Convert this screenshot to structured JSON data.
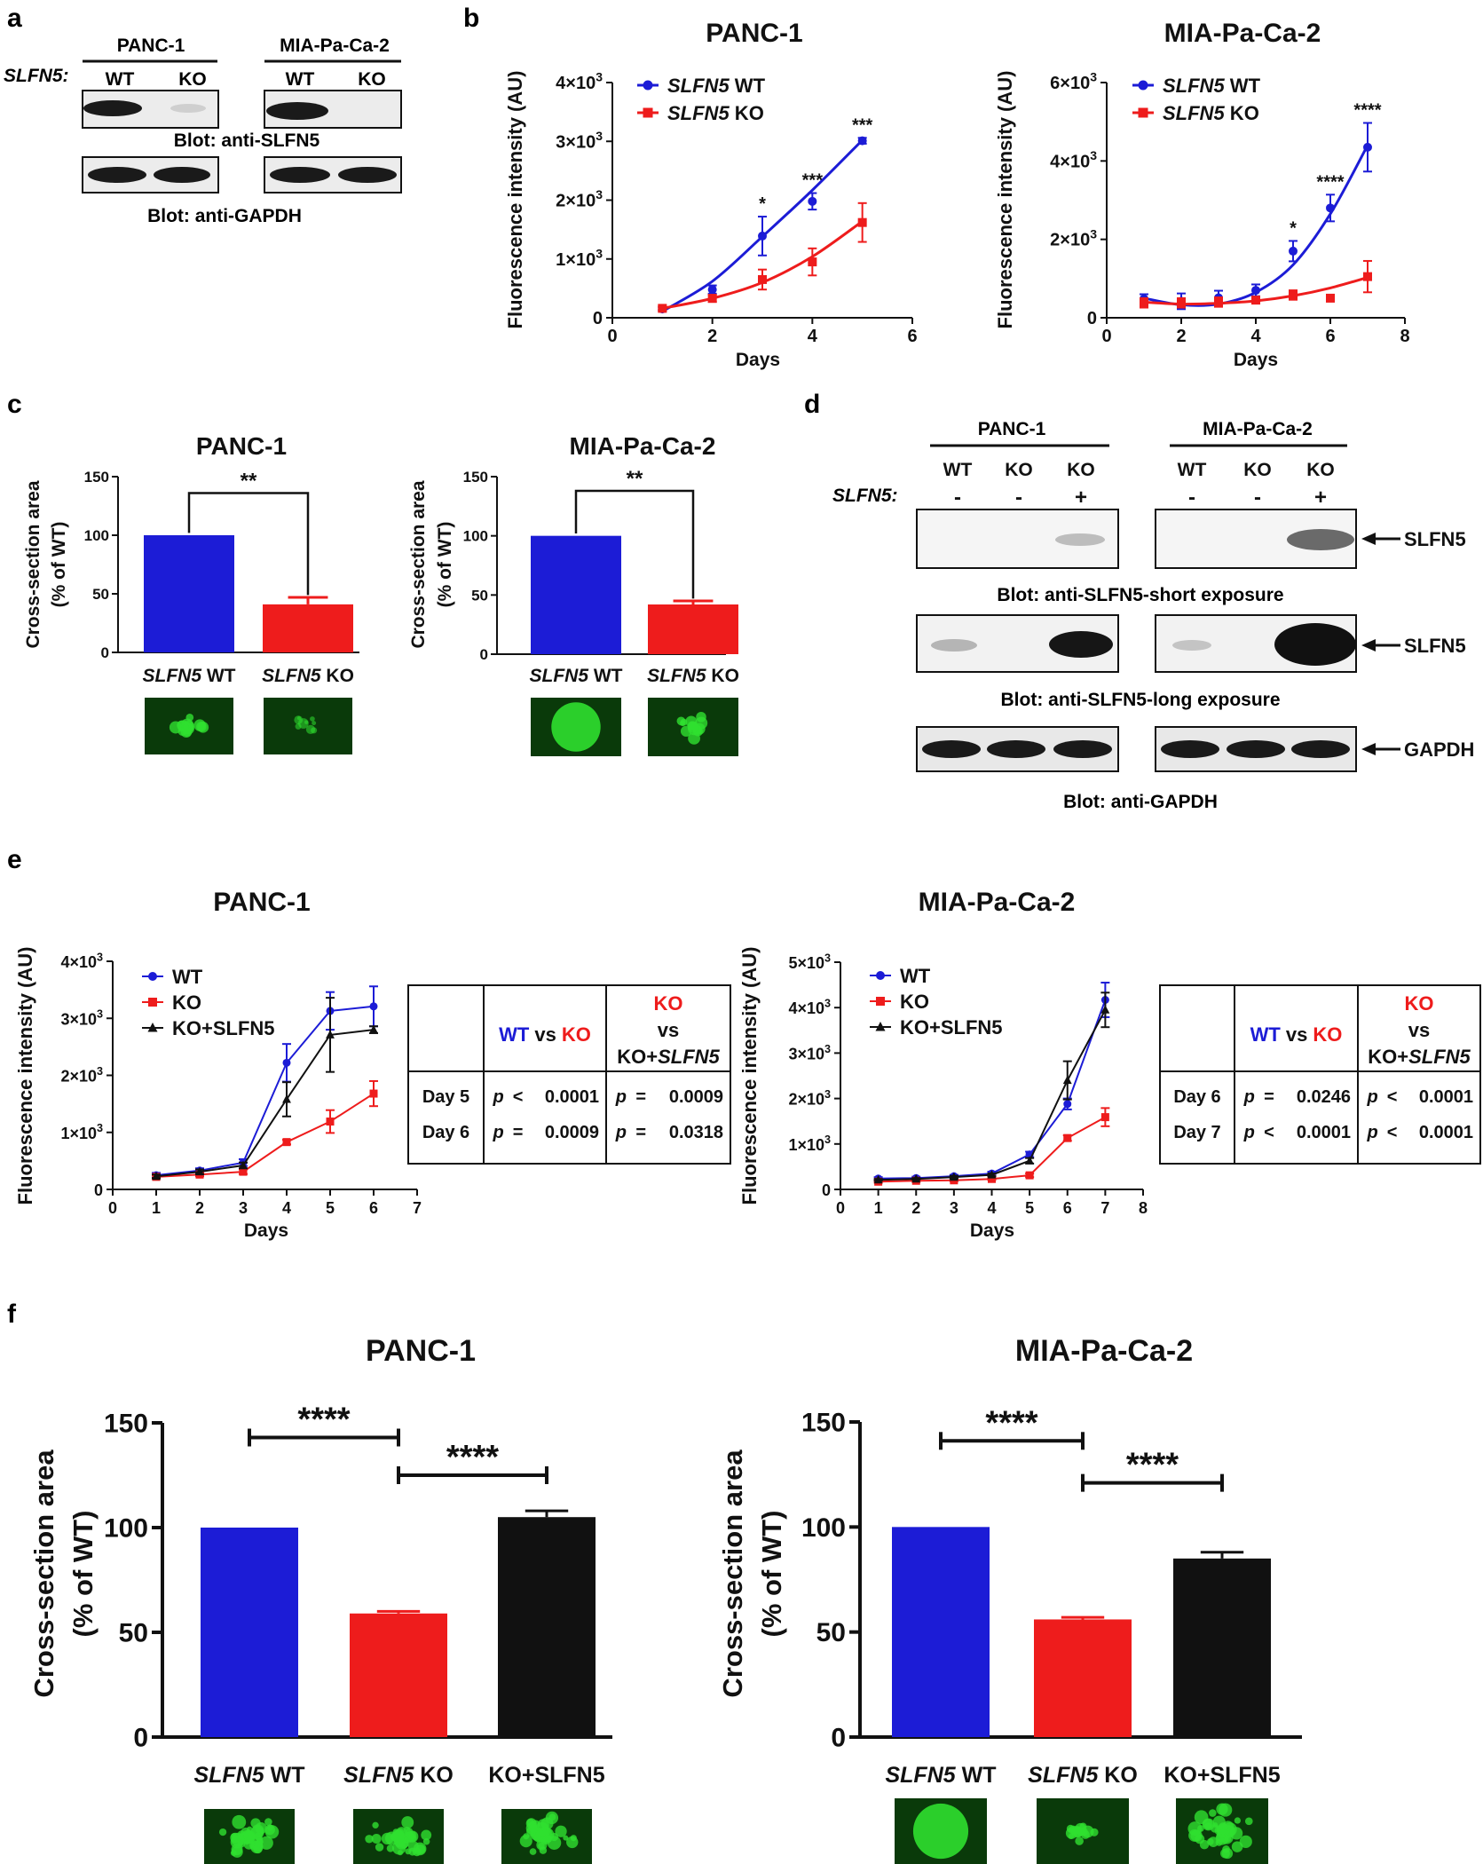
{
  "colors": {
    "wt": "#1c1cd6",
    "ko": "#ee1c1c",
    "rescue": "#111111",
    "axis": "#111111",
    "blot_bg": "#ededed",
    "band": "#1a1a1a",
    "glow": "#2fe02f"
  },
  "panel_labels": {
    "a": "a",
    "b": "b",
    "c": "c",
    "d": "d",
    "e": "e",
    "f": "f"
  },
  "panel_a": {
    "cells": [
      "PANC-1",
      "MIA-Pa-Ca-2"
    ],
    "row_label": "SLFN5:",
    "lanes": [
      "WT",
      "KO",
      "WT",
      "KO"
    ],
    "blot1": "Blot: anti-SLFN5",
    "blot2": "Blot: anti-GAPDH"
  },
  "panel_d": {
    "cells": [
      "PANC-1",
      "MIA-Pa-Ca-2"
    ],
    "lanes": [
      "WT",
      "KO",
      "KO",
      "WT",
      "KO",
      "KO"
    ],
    "row_label": "SLFN5:",
    "signs": [
      "-",
      "-",
      "+",
      "-",
      "-",
      "+"
    ],
    "blot_short": "Blot: anti-SLFN5-short exposure",
    "blot_long": "Blot: anti-SLFN5-long exposure",
    "blot_gapdh": "Blot: anti-GAPDH",
    "arrow_labels": [
      "SLFN5",
      "SLFN5",
      "GAPDH"
    ]
  },
  "table_e": [
    {
      "header": {
        "c1a": "WT",
        "c1b": "vs",
        "c1c": "KO",
        "c2a": "KO",
        "c2b": "vs",
        "c2c": "KO+",
        "c2d": "SLFN5"
      },
      "rows": [
        {
          "day": "Day 5",
          "p1": "p",
          "op1": "<",
          "v1": "0.0001",
          "p2": "p",
          "op2": "=",
          "v2": "0.0009"
        },
        {
          "day": "Day 6",
          "p1": "p",
          "op1": "=",
          "v1": "0.0009",
          "p2": "p",
          "op2": "=",
          "v2": "0.0318"
        }
      ]
    },
    {
      "header": {
        "c1a": "WT",
        "c1b": "vs",
        "c1c": "KO",
        "c2a": "KO",
        "c2b": "vs",
        "c2c": "KO+",
        "c2d": "SLFN5"
      },
      "rows": [
        {
          "day": "Day 6",
          "p1": "p",
          "op1": "=",
          "v1": "0.0246",
          "p2": "p",
          "op2": "<",
          "v2": "0.0001"
        },
        {
          "day": "Day 7",
          "p1": "p",
          "op1": "<",
          "v1": "0.0001",
          "p2": "p",
          "op2": "<",
          "v2": "0.0001"
        }
      ]
    }
  ],
  "chart_data": [
    {
      "id": "b1",
      "type": "line",
      "title": "PANC-1",
      "xlabel": "Days",
      "ylabel": "Fluorescence intensity (AU)",
      "xlim": [
        0,
        6
      ],
      "ylim": [
        0,
        4000
      ],
      "xticks": [
        0,
        2,
        4,
        6
      ],
      "yticks": [
        {
          "v": 0,
          "label": "0"
        },
        {
          "v": 1000,
          "label": "1×10",
          "exp": "3"
        },
        {
          "v": 2000,
          "label": "2×10",
          "exp": "3"
        },
        {
          "v": 3000,
          "label": "3×10",
          "exp": "3"
        },
        {
          "v": 4000,
          "label": "4×10",
          "exp": "3"
        }
      ],
      "fit": "curve",
      "series": [
        {
          "name": "SLFN5 WT",
          "gene": "SLFN5",
          "suffix": " WT",
          "colorKey": "wt",
          "marker": "circle",
          "x": [
            1,
            2,
            3,
            4,
            5
          ],
          "y": [
            150,
            480,
            1390,
            1980,
            3010
          ],
          "err": [
            30,
            70,
            330,
            140,
            50
          ],
          "fit": [
            [
              1,
              110
            ],
            [
              2,
              620
            ],
            [
              3,
              1380
            ],
            [
              4,
              2170
            ],
            [
              5,
              3020
            ]
          ]
        },
        {
          "name": "SLFN5 KO",
          "gene": "SLFN5",
          "suffix": " KO",
          "colorKey": "ko",
          "marker": "square",
          "x": [
            1,
            2,
            3,
            4,
            5
          ],
          "y": [
            160,
            330,
            650,
            950,
            1620
          ],
          "err": [
            30,
            60,
            170,
            230,
            330
          ],
          "fit": [
            [
              1,
              160
            ],
            [
              2,
              330
            ],
            [
              3,
              600
            ],
            [
              4,
              1040
            ],
            [
              5,
              1640
            ]
          ]
        }
      ],
      "sig": [
        {
          "x": 3,
          "text": "*"
        },
        {
          "x": 4,
          "text": "***"
        },
        {
          "x": 5,
          "text": "***"
        }
      ]
    },
    {
      "id": "b2",
      "type": "line",
      "title": "MIA-Pa-Ca-2",
      "xlabel": "Days",
      "ylabel": "Fluorescence intensity (AU)",
      "xlim": [
        0,
        8
      ],
      "ylim": [
        0,
        6000
      ],
      "xticks": [
        0,
        2,
        4,
        6,
        8
      ],
      "yticks": [
        {
          "v": 0,
          "label": "0"
        },
        {
          "v": 2000,
          "label": "2×10",
          "exp": "3"
        },
        {
          "v": 4000,
          "label": "4×10",
          "exp": "3"
        },
        {
          "v": 6000,
          "label": "6×10",
          "exp": "3"
        }
      ],
      "fit": "curve",
      "series": [
        {
          "name": "SLFN5 WT",
          "gene": "SLFN5",
          "suffix": " WT",
          "colorKey": "wt",
          "marker": "circle",
          "x": [
            1,
            2,
            3,
            4,
            5,
            6,
            7
          ],
          "y": [
            480,
            420,
            510,
            700,
            1700,
            2800,
            4350
          ],
          "err": [
            120,
            200,
            180,
            150,
            260,
            340,
            620
          ],
          "fit": [
            [
              1,
              500
            ],
            [
              2,
              330
            ],
            [
              3,
              350
            ],
            [
              4,
              650
            ],
            [
              5,
              1350
            ],
            [
              6,
              2650
            ],
            [
              7,
              4400
            ]
          ]
        },
        {
          "name": "SLFN5 KO",
          "gene": "SLFN5",
          "suffix": " KO",
          "colorKey": "ko",
          "marker": "square",
          "x": [
            1,
            2,
            3,
            4,
            5,
            6,
            7
          ],
          "y": [
            380,
            380,
            400,
            450,
            580,
            500,
            1050
          ],
          "err": [
            120,
            120,
            120,
            80,
            120,
            50,
            400
          ],
          "fit": [
            [
              1,
              400
            ],
            [
              2,
              350
            ],
            [
              3,
              370
            ],
            [
              4,
              430
            ],
            [
              5,
              560
            ],
            [
              6,
              760
            ],
            [
              7,
              1030
            ]
          ]
        }
      ],
      "sig": [
        {
          "x": 5,
          "text": "*"
        },
        {
          "x": 6,
          "text": "****"
        },
        {
          "x": 7,
          "text": "****"
        }
      ]
    },
    {
      "id": "c1",
      "type": "bar",
      "title": "PANC-1",
      "ylabel": "Cross-section area",
      "ylabel2": "(% of WT)",
      "ylim": [
        0,
        150
      ],
      "yticks": [
        0,
        50,
        100,
        150
      ],
      "categories": [
        {
          "gene": "SLFN5",
          "suffix": " WT"
        },
        {
          "gene": "SLFN5",
          "suffix": " KO"
        }
      ],
      "values": [
        100,
        41
      ],
      "err": [
        0,
        6
      ],
      "colorKeys": [
        "wt",
        "ko"
      ],
      "sig": [
        {
          "from": 0,
          "to": 1,
          "text": "**",
          "yv": 136
        }
      ],
      "thumbs": [
        "scattered",
        "faint"
      ]
    },
    {
      "id": "c2",
      "type": "bar",
      "title": "MIA-Pa-Ca-2",
      "ylabel": "Cross-section area",
      "ylabel2": "(% of WT)",
      "ylim": [
        0,
        150
      ],
      "yticks": [
        0,
        50,
        100,
        150
      ],
      "categories": [
        {
          "gene": "SLFN5",
          "suffix": " WT"
        },
        {
          "gene": "SLFN5",
          "suffix": " KO"
        }
      ],
      "values": [
        100,
        42
      ],
      "err": [
        0,
        3
      ],
      "colorKeys": [
        "wt",
        "ko"
      ],
      "sig": [
        {
          "from": 0,
          "to": 1,
          "text": "**",
          "yv": 138
        }
      ],
      "thumbs": [
        "sphere",
        "scattered"
      ]
    },
    {
      "id": "e1",
      "type": "line",
      "title": "PANC-1",
      "xlabel": "Days",
      "ylabel": "Fluorescence intensity (AU)",
      "xlim": [
        0,
        7
      ],
      "ylim": [
        0,
        4000
      ],
      "xticks": [
        0,
        1,
        2,
        3,
        4,
        5,
        6,
        7
      ],
      "yticks": [
        {
          "v": 0,
          "label": "0"
        },
        {
          "v": 1000,
          "label": "1×10",
          "exp": "3"
        },
        {
          "v": 2000,
          "label": "2×10",
          "exp": "3"
        },
        {
          "v": 3000,
          "label": "3×10",
          "exp": "3"
        },
        {
          "v": 4000,
          "label": "4×10",
          "exp": "3"
        }
      ],
      "fit": "connect",
      "series": [
        {
          "name": "WT",
          "colorKey": "wt",
          "marker": "circle",
          "x": [
            1,
            2,
            3,
            4,
            5,
            6
          ],
          "y": [
            250,
            330,
            470,
            2220,
            3130,
            3210
          ],
          "err": [
            40,
            40,
            60,
            330,
            330,
            350
          ]
        },
        {
          "name": "KO",
          "colorKey": "ko",
          "marker": "square",
          "x": [
            1,
            2,
            3,
            4,
            5,
            6
          ],
          "y": [
            220,
            260,
            310,
            830,
            1190,
            1680
          ],
          "err": [
            30,
            30,
            40,
            40,
            200,
            220
          ]
        },
        {
          "name": "KO+SLFN5",
          "colorKey": "rescue",
          "marker": "triangle",
          "x": [
            1,
            2,
            3,
            4,
            5,
            6
          ],
          "y": [
            230,
            310,
            420,
            1580,
            2710,
            2800
          ],
          "err": [
            30,
            40,
            50,
            300,
            650,
            60
          ]
        }
      ]
    },
    {
      "id": "e2",
      "type": "line",
      "title": "MIA-Pa-Ca-2",
      "xlabel": "Days",
      "ylabel": "Fluorescence intensity (AU)",
      "xlim": [
        0,
        8
      ],
      "ylim": [
        0,
        5000
      ],
      "xticks": [
        0,
        1,
        2,
        3,
        4,
        5,
        6,
        7,
        8
      ],
      "yticks": [
        {
          "v": 0,
          "label": "0"
        },
        {
          "v": 1000,
          "label": "1×10",
          "exp": "3"
        },
        {
          "v": 2000,
          "label": "2×10",
          "exp": "3"
        },
        {
          "v": 3000,
          "label": "3×10",
          "exp": "3"
        },
        {
          "v": 4000,
          "label": "4×10",
          "exp": "3"
        },
        {
          "v": 5000,
          "label": "5×10",
          "exp": "3"
        }
      ],
      "fit": "connect",
      "series": [
        {
          "name": "WT",
          "colorKey": "wt",
          "marker": "circle",
          "x": [
            1,
            2,
            3,
            4,
            5,
            6,
            7
          ],
          "y": [
            240,
            250,
            290,
            350,
            770,
            1880,
            4170
          ],
          "err": [
            30,
            30,
            30,
            40,
            60,
            120,
            380
          ]
        },
        {
          "name": "KO",
          "colorKey": "ko",
          "marker": "square",
          "x": [
            1,
            2,
            3,
            4,
            5,
            6,
            7
          ],
          "y": [
            170,
            190,
            200,
            230,
            310,
            1130,
            1590
          ],
          "err": [
            20,
            20,
            20,
            20,
            40,
            60,
            200
          ]
        },
        {
          "name": "KO+SLFN5",
          "colorKey": "rescue",
          "marker": "triangle",
          "x": [
            1,
            2,
            3,
            4,
            5,
            6,
            7
          ],
          "y": [
            210,
            230,
            270,
            320,
            630,
            2400,
            3950
          ],
          "err": [
            20,
            20,
            30,
            30,
            60,
            420,
            380
          ]
        }
      ]
    },
    {
      "id": "f1",
      "type": "bar",
      "title": "PANC-1",
      "ylabel": "Cross-section area",
      "ylabel2": "(% of WT)",
      "ylim": [
        0,
        150
      ],
      "yticks": [
        0,
        50,
        100,
        150
      ],
      "categories": [
        {
          "gene": "SLFN5",
          "suffix": " WT"
        },
        {
          "gene": "SLFN5",
          "suffix": " KO"
        },
        {
          "gene": "",
          "suffix": "KO+SLFN5"
        }
      ],
      "values": [
        100,
        59,
        105
      ],
      "err": [
        0,
        1,
        3
      ],
      "colorKeys": [
        "wt",
        "ko",
        "rescue"
      ],
      "sig": [
        {
          "from": 0,
          "to": 1,
          "text": "****",
          "yv": 143
        },
        {
          "from": 1,
          "to": 2,
          "text": "****",
          "yv": 125
        }
      ],
      "thumbs": [
        "cluster",
        "cluster",
        "cluster"
      ]
    },
    {
      "id": "f2",
      "type": "bar",
      "title": "MIA-Pa-Ca-2",
      "ylabel": "Cross-section area",
      "ylabel2": "(% of WT)",
      "ylim": [
        0,
        150
      ],
      "yticks": [
        0,
        50,
        100,
        150
      ],
      "categories": [
        {
          "gene": "SLFN5",
          "suffix": " WT"
        },
        {
          "gene": "SLFN5",
          "suffix": " KO"
        },
        {
          "gene": "",
          "suffix": "KO+SLFN5"
        }
      ],
      "values": [
        100,
        56,
        85
      ],
      "err": [
        0,
        1,
        3
      ],
      "colorKeys": [
        "wt",
        "ko",
        "rescue"
      ],
      "sig": [
        {
          "from": 0,
          "to": 1,
          "text": "****",
          "yv": 141
        },
        {
          "from": 1,
          "to": 2,
          "text": "****",
          "yv": 121
        }
      ],
      "thumbs": [
        "sphere",
        "small",
        "cluster"
      ]
    }
  ]
}
